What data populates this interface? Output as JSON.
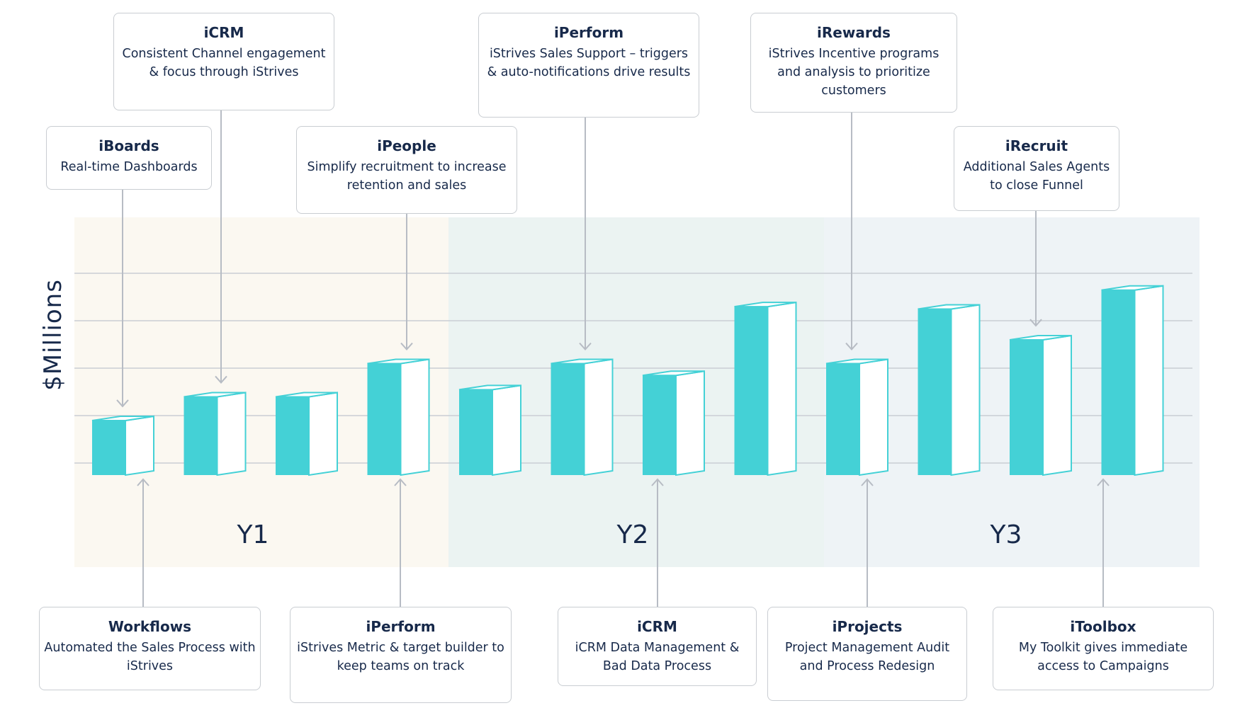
{
  "chart_data": {
    "type": "bar",
    "ylabel": "$Millions",
    "groups": [
      "Y1",
      "Y2",
      "Y3"
    ],
    "ylim": [
      0,
      5
    ],
    "grid": true,
    "values": [
      1.15,
      1.65,
      1.65,
      2.35,
      1.8,
      2.35,
      2.1,
      3.55,
      2.35,
      3.5,
      2.85,
      3.9
    ],
    "bar_color": "#44d1d6"
  },
  "callouts_top": [
    {
      "title": "iBoards",
      "desc": "Real-time Dashboards"
    },
    {
      "title": "iCRM",
      "desc": "Consistent Channel engagement & focus through iStrives"
    },
    {
      "title": "iPeople",
      "desc": "Simplify recruitment to increase retention and sales"
    },
    {
      "title": "iPerform",
      "desc": "iStrives Sales Support – triggers & auto-notifications drive results"
    },
    {
      "title": "iRewards",
      "desc": "iStrives Incentive programs and analysis to prioritize customers"
    },
    {
      "title": "iRecruit",
      "desc": "Additional Sales Agents to close Funnel"
    }
  ],
  "callouts_bottom": [
    {
      "title": "Workflows",
      "desc": "Automated the Sales Process with iStrives"
    },
    {
      "title": "iPerform",
      "desc": "iStrives Metric & target builder to keep teams on track"
    },
    {
      "title": "iCRM",
      "desc": "iCRM Data Management & Bad Data Process"
    },
    {
      "title": "iProjects",
      "desc": "Project Management Audit and Process Redesign"
    },
    {
      "title": "iToolbox",
      "desc": "My Toolkit gives immediate access to Campaigns"
    }
  ]
}
